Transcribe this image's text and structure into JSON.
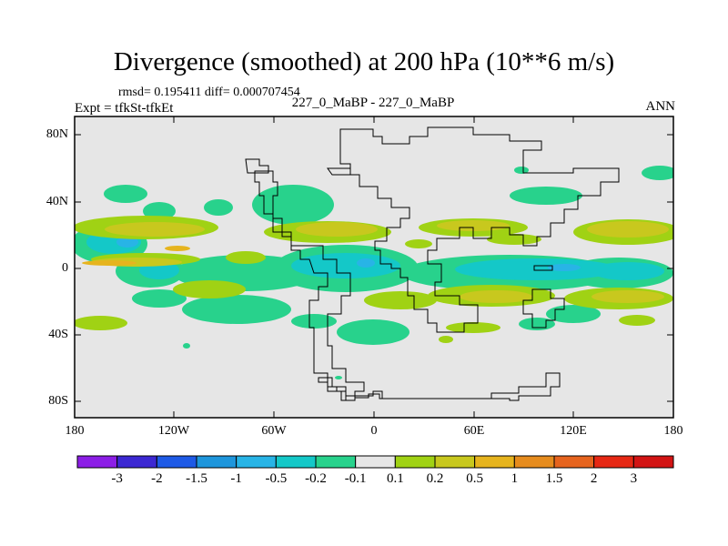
{
  "plot": {
    "title": "Divergence (smoothed) at 200 hPa (10**6 m/s)",
    "stats": "rmsd= 0.195411 diff= 0.000707454",
    "expt": "Expt = tfkSt-tfkEt",
    "case": "227_0_MaBP - 227_0_MaBP",
    "season": "ANN"
  },
  "axes": {
    "y_ticks": [
      "80N",
      "40N",
      "0",
      "40S",
      "80S"
    ],
    "x_ticks": [
      "180",
      "120W",
      "60W",
      "0",
      "60E",
      "120E",
      "180"
    ]
  },
  "colorbar": {
    "labels": [
      "-3",
      "-2",
      "-1.5",
      "-1",
      "-0.5",
      "-0.2",
      "-0.1",
      "0.1",
      "0.2",
      "0.5",
      "1",
      "1.5",
      "2",
      "3"
    ],
    "colors": [
      "#8c1ee6",
      "#3c28d2",
      "#1e5ae6",
      "#1e96dc",
      "#28b4e6",
      "#14c8c8",
      "#28d28c",
      "#e6e6e6",
      "#a0d214",
      "#c8c81e",
      "#e6b41e",
      "#e68c1e",
      "#e6641e",
      "#e62814",
      "#d21414"
    ]
  },
  "colors": {
    "background": "#e6e6e6",
    "neg_light": "#28d28c",
    "neg_mid": "#14c8c8",
    "neg_strong": "#28b4e6",
    "pos_light": "#a0d214",
    "pos_mid": "#c8c81e",
    "pos_strong": "#e6b41e"
  }
}
